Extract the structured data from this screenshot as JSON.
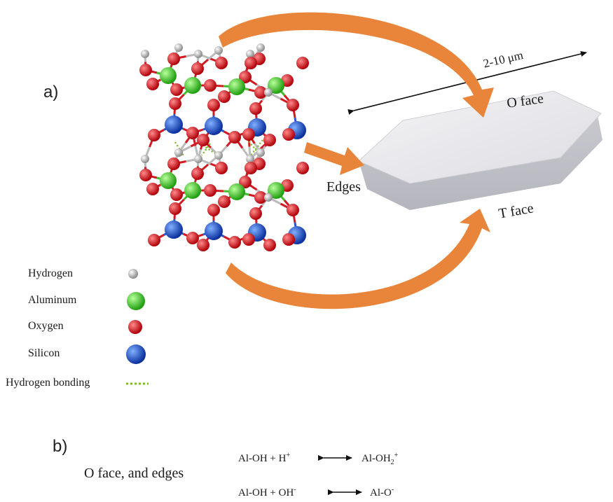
{
  "panel_a_label": "a)",
  "panel_b_label": "b)",
  "dimension_label": "2-10 μm",
  "o_face_label": "O face",
  "t_face_label": "T face",
  "edges_label": "Edges",
  "legend": {
    "hydrogen": "Hydrogen",
    "aluminum": "Aluminum",
    "oxygen": "Oxygen",
    "silicon": "Silicon",
    "hbond": "Hydrogen bonding"
  },
  "colors": {
    "hydrogen": "#d9d9d9",
    "aluminum": "#2ecc1f",
    "oxygen": "#e0141e",
    "silicon": "#1a5cd6",
    "hbond": "#7dbb2e",
    "arrow": "#e8853a"
  },
  "section_b": {
    "title": "O face, and edges",
    "eq1": {
      "left": "Al-OH + H",
      "left_sup": "+",
      "right": "Al-OH",
      "right_sub": "2",
      "right_sup": "+"
    },
    "eq2": {
      "left": "Al-OH + OH",
      "left_sup": "-",
      "right": "Al-O",
      "right_sup": "-"
    }
  }
}
